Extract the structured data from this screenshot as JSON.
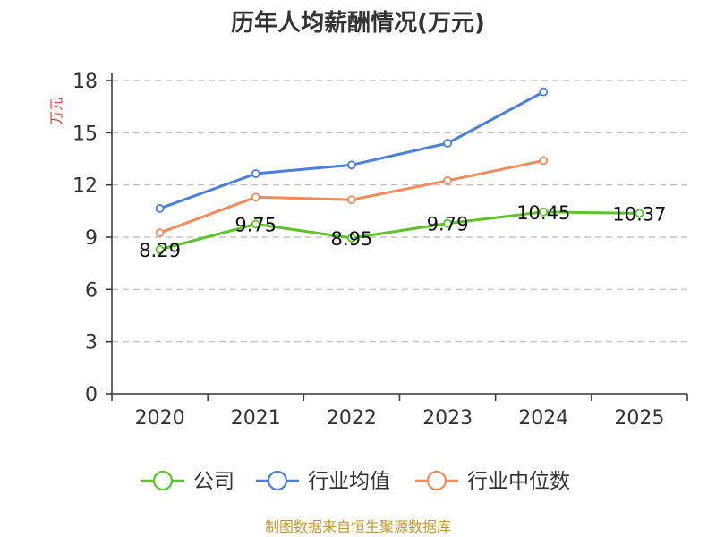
{
  "chart_data": {
    "type": "line",
    "title": "历年人均薪酬情况(万元)",
    "ylabel": "万元",
    "xlabel": "",
    "categories": [
      "2020",
      "2021",
      "2022",
      "2023",
      "2024",
      "2025"
    ],
    "ylim": [
      0,
      18
    ],
    "yticks": [
      0,
      3,
      6,
      9,
      12,
      15,
      18
    ],
    "grid": true,
    "legend_position": "bottom",
    "series": [
      {
        "name": "公司",
        "color": "#5bc427",
        "values": [
          8.29,
          9.75,
          8.95,
          9.79,
          10.45,
          10.37
        ],
        "labels": [
          "8.29",
          "9.75",
          "8.95",
          "9.79",
          "10.45",
          "10.37"
        ]
      },
      {
        "name": "行业均值",
        "color": "#4a7fdb",
        "values": [
          10.65,
          12.65,
          13.15,
          14.4,
          17.35,
          null
        ]
      },
      {
        "name": "行业中位数",
        "color": "#f28b5a",
        "values": [
          9.25,
          11.3,
          11.15,
          12.25,
          13.4,
          null
        ]
      }
    ],
    "source": "制图数据来自恒生聚源数据库"
  },
  "colors": {
    "axis": "#333333",
    "grid": "#bbbbbb",
    "unit_label": "#e0302b",
    "source_text": "#c8962c"
  }
}
